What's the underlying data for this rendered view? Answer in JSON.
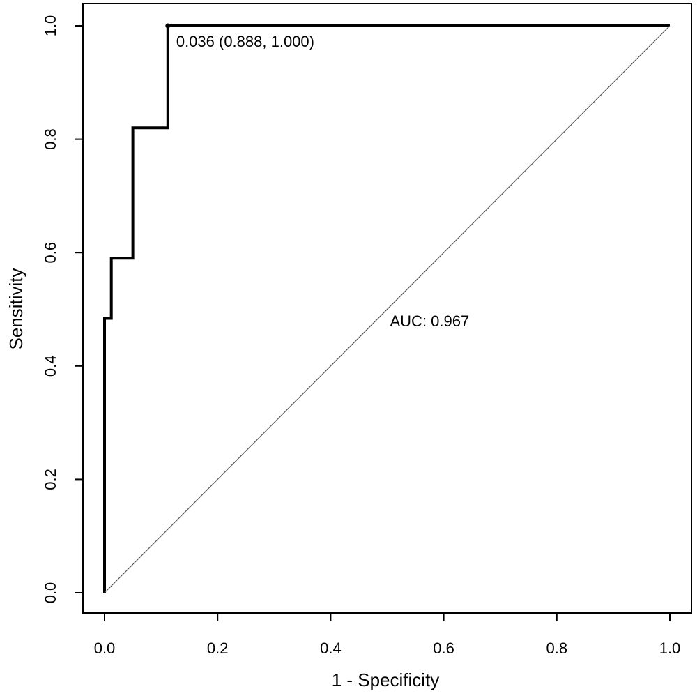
{
  "chart_data": {
    "type": "line",
    "title": "",
    "xlabel": "1 - Specificity",
    "ylabel": "Sensitivity",
    "xlim": [
      0,
      1
    ],
    "ylim": [
      0,
      1
    ],
    "x_ticks": [
      0.0,
      0.2,
      0.4,
      0.6,
      0.8,
      1.0
    ],
    "x_tick_labels": [
      "0.0",
      "0.2",
      "0.4",
      "0.6",
      "0.8",
      "1.0"
    ],
    "y_ticks": [
      0.0,
      0.2,
      0.4,
      0.6,
      0.8,
      1.0
    ],
    "y_tick_labels": [
      "0.0",
      "0.2",
      "0.4",
      "0.6",
      "0.8",
      "1.0"
    ],
    "grid": false,
    "series": [
      {
        "name": "ROC curve",
        "style": "step",
        "x": [
          0.0,
          0.0,
          0.012,
          0.012,
          0.05,
          0.05,
          0.112,
          0.112,
          1.0
        ],
        "y": [
          0.0,
          0.484,
          0.484,
          0.59,
          0.59,
          0.82,
          0.82,
          1.0,
          1.0
        ]
      },
      {
        "name": "reference diagonal",
        "style": "line",
        "x": [
          0.0,
          1.0
        ],
        "y": [
          0.0,
          1.0
        ]
      }
    ],
    "threshold_point": {
      "x": 0.112,
      "y": 1.0,
      "label": "0.036 (0.888, 1.000)"
    },
    "auc_label": {
      "text": "AUC: 0.967",
      "x": 0.5,
      "y": 0.48
    },
    "colors": {
      "roc": "#000000",
      "diagonal": "#555555",
      "axis": "#000000"
    }
  }
}
